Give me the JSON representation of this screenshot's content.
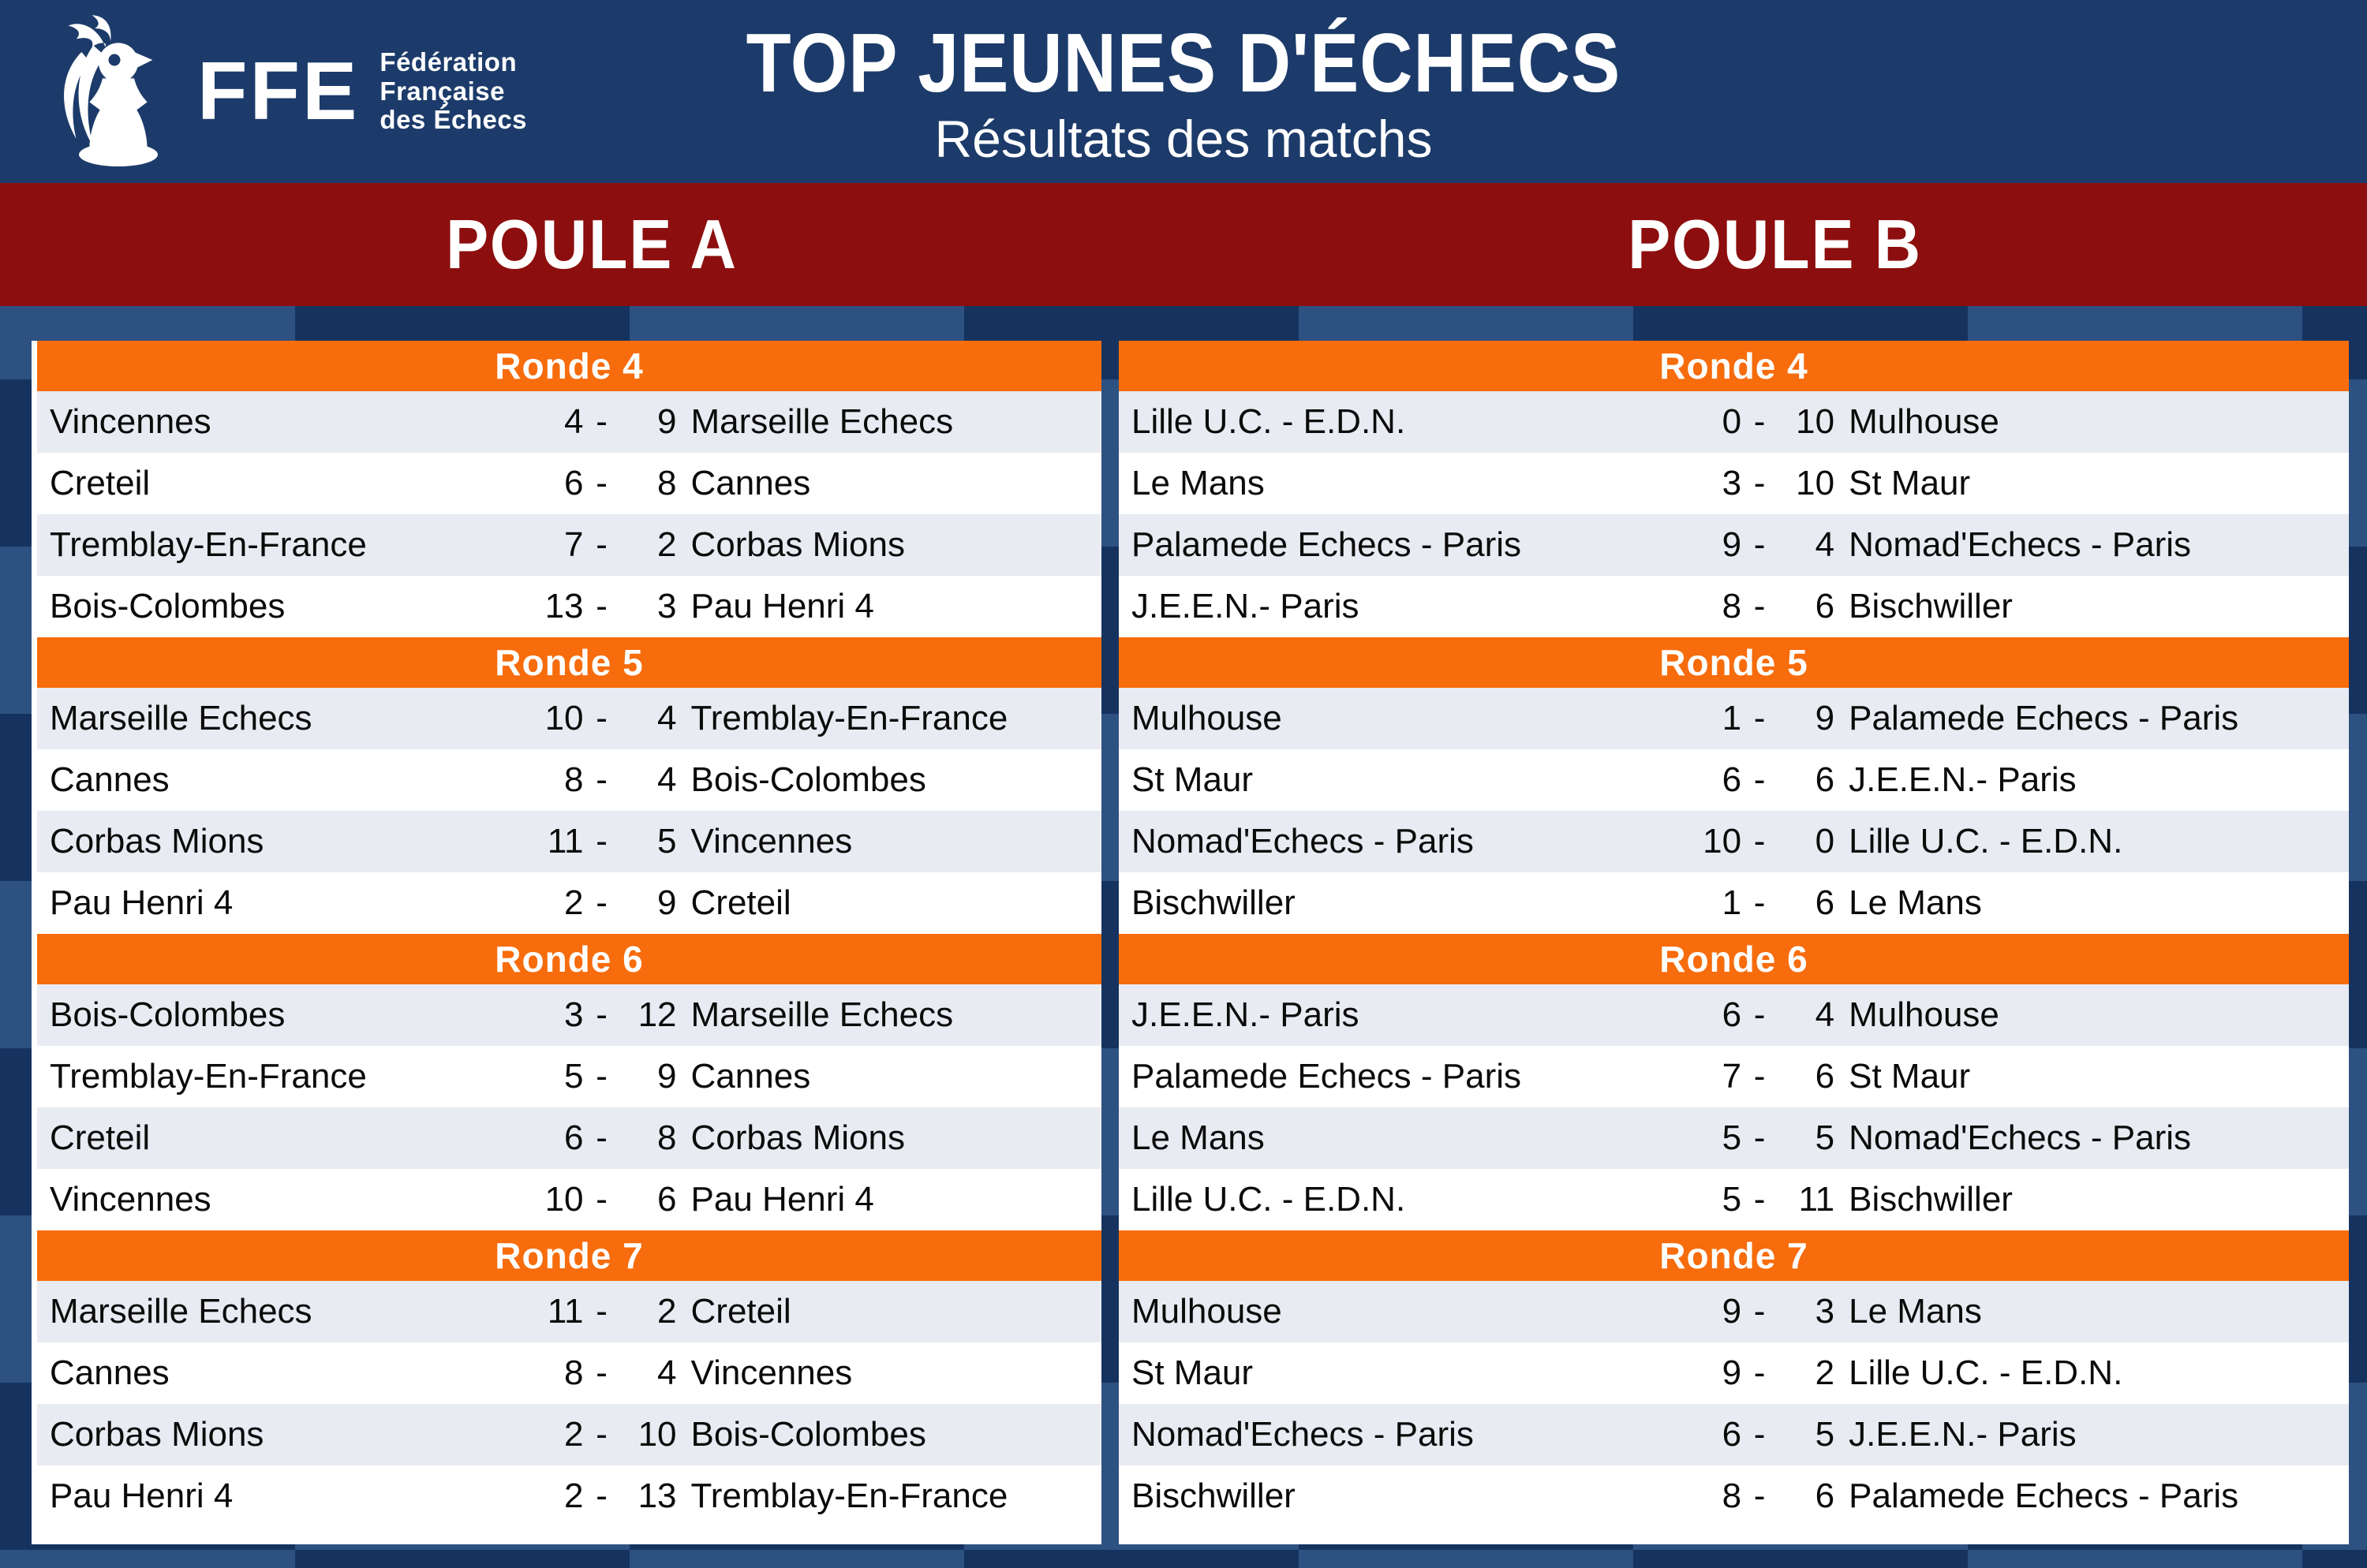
{
  "header": {
    "logo": {
      "acronym": "FFE",
      "tagline_lines": [
        "Fédération",
        "Française",
        "des Échecs"
      ]
    },
    "title": "TOP JEUNES D'ÉCHECS",
    "subtitle": "Résultats des matchs"
  },
  "score_separator": "-",
  "colors": {
    "header_navy": "#1C3B6A",
    "band_red": "#8C0E0E",
    "round_orange": "#F76C0C",
    "row_alt": "#E9EBF2",
    "checker_dark": "#16335F",
    "checker_light": "#2D5181",
    "text": "#0B0B0B",
    "white": "#FFFFFF"
  },
  "pools": [
    {
      "label": "POULE A",
      "rounds": [
        {
          "title": "Ronde 4",
          "matches": [
            {
              "home": "Vincennes",
              "home_score": "4",
              "away_score": "9",
              "away": "Marseille Echecs"
            },
            {
              "home": "Creteil",
              "home_score": "6",
              "away_score": "8",
              "away": "Cannes"
            },
            {
              "home": "Tremblay-En-France",
              "home_score": "7",
              "away_score": "2",
              "away": "Corbas Mions"
            },
            {
              "home": "Bois-Colombes",
              "home_score": "13",
              "away_score": "3",
              "away": "Pau Henri 4"
            }
          ]
        },
        {
          "title": "Ronde 5",
          "matches": [
            {
              "home": "Marseille Echecs",
              "home_score": "10",
              "away_score": "4",
              "away": "Tremblay-En-France"
            },
            {
              "home": "Cannes",
              "home_score": "8",
              "away_score": "4",
              "away": "Bois-Colombes"
            },
            {
              "home": "Corbas Mions",
              "home_score": "11",
              "away_score": "5",
              "away": "Vincennes"
            },
            {
              "home": "Pau Henri 4",
              "home_score": "2",
              "away_score": "9",
              "away": "Creteil"
            }
          ]
        },
        {
          "title": "Ronde 6",
          "matches": [
            {
              "home": "Bois-Colombes",
              "home_score": "3",
              "away_score": "12",
              "away": "Marseille Echecs"
            },
            {
              "home": "Tremblay-En-France",
              "home_score": "5",
              "away_score": "9",
              "away": "Cannes"
            },
            {
              "home": "Creteil",
              "home_score": "6",
              "away_score": "8",
              "away": "Corbas Mions"
            },
            {
              "home": "Vincennes",
              "home_score": "10",
              "away_score": "6",
              "away": "Pau Henri 4"
            }
          ]
        },
        {
          "title": "Ronde 7",
          "matches": [
            {
              "home": "Marseille Echecs",
              "home_score": "11",
              "away_score": "2",
              "away": "Creteil"
            },
            {
              "home": "Cannes",
              "home_score": "8",
              "away_score": "4",
              "away": "Vincennes"
            },
            {
              "home": "Corbas Mions",
              "home_score": "2",
              "away_score": "10",
              "away": "Bois-Colombes"
            },
            {
              "home": "Pau Henri 4",
              "home_score": "2",
              "away_score": "13",
              "away": "Tremblay-En-France"
            }
          ]
        }
      ]
    },
    {
      "label": "POULE B",
      "rounds": [
        {
          "title": "Ronde 4",
          "matches": [
            {
              "home": "Lille U.C. - E.D.N.",
              "home_score": "0",
              "away_score": "10",
              "away": "Mulhouse"
            },
            {
              "home": "Le Mans",
              "home_score": "3",
              "away_score": "10",
              "away": "St Maur"
            },
            {
              "home": "Palamede Echecs - Paris",
              "home_score": "9",
              "away_score": "4",
              "away": "Nomad'Echecs - Paris"
            },
            {
              "home": "J.E.E.N.- Paris",
              "home_score": "8",
              "away_score": "6",
              "away": "Bischwiller"
            }
          ]
        },
        {
          "title": "Ronde 5",
          "matches": [
            {
              "home": "Mulhouse",
              "home_score": "1",
              "away_score": "9",
              "away": "Palamede Echecs - Paris"
            },
            {
              "home": "St Maur",
              "home_score": "6",
              "away_score": "6",
              "away": "J.E.E.N.- Paris"
            },
            {
              "home": "Nomad'Echecs - Paris",
              "home_score": "10",
              "away_score": "0",
              "away": "Lille U.C. - E.D.N."
            },
            {
              "home": "Bischwiller",
              "home_score": "1",
              "away_score": "6",
              "away": "Le Mans"
            }
          ]
        },
        {
          "title": "Ronde 6",
          "matches": [
            {
              "home": "J.E.E.N.- Paris",
              "home_score": "6",
              "away_score": "4",
              "away": "Mulhouse"
            },
            {
              "home": "Palamede Echecs - Paris",
              "home_score": "7",
              "away_score": "6",
              "away": "St Maur"
            },
            {
              "home": "Le Mans",
              "home_score": "5",
              "away_score": "5",
              "away": "Nomad'Echecs - Paris"
            },
            {
              "home": "Lille U.C. - E.D.N.",
              "home_score": "5",
              "away_score": "11",
              "away": "Bischwiller"
            }
          ]
        },
        {
          "title": "Ronde 7",
          "matches": [
            {
              "home": "Mulhouse",
              "home_score": "9",
              "away_score": "3",
              "away": "Le Mans"
            },
            {
              "home": "St Maur",
              "home_score": "9",
              "away_score": "2",
              "away": "Lille U.C. - E.D.N."
            },
            {
              "home": "Nomad'Echecs - Paris",
              "home_score": "6",
              "away_score": "5",
              "away": "J.E.E.N.- Paris"
            },
            {
              "home": "Bischwiller",
              "home_score": "8",
              "away_score": "6",
              "away": "Palamede Echecs - Paris"
            }
          ]
        }
      ]
    }
  ]
}
